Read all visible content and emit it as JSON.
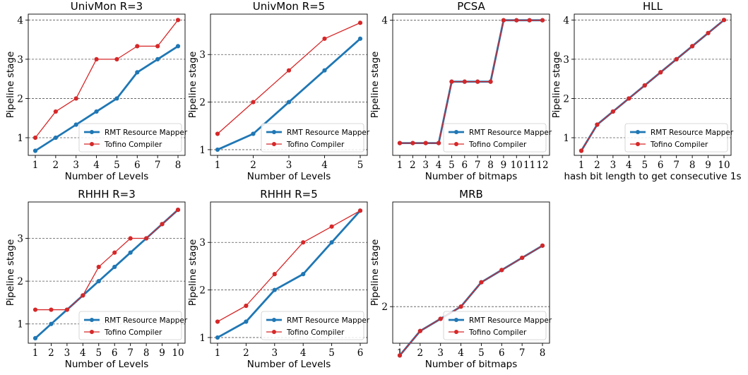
{
  "colors": {
    "rmt": "#1f77b4",
    "tofino": "#d62728",
    "grid": "#555555"
  },
  "legend": {
    "rmt": "RMT Resource Mapper",
    "tofino": "Tofino Compiler",
    "placement": "lower-right"
  },
  "chart_data": [
    {
      "type": "line",
      "title": "UnivMon R=3",
      "xlabel": "Number of Levels",
      "ylabel": "Pipeline stage",
      "x": [
        1,
        2,
        3,
        4,
        5,
        6,
        7,
        8
      ],
      "ylim": [
        0.55,
        4.15
      ],
      "yticks": [
        1,
        2,
        3,
        4
      ],
      "series": [
        {
          "name": "RMT Resource Mapper",
          "values": [
            0.667,
            1.0,
            1.333,
            1.667,
            2.0,
            2.667,
            3.0,
            3.333
          ]
        },
        {
          "name": "Tofino Compiler",
          "values": [
            1.0,
            1.667,
            2.0,
            3.0,
            3.0,
            3.333,
            3.333,
            4.0
          ]
        }
      ],
      "grid": "y"
    },
    {
      "type": "line",
      "title": "UnivMon R=5",
      "xlabel": "Number of Levels",
      "ylabel": "Pipeline stage",
      "x": [
        1,
        2,
        3,
        4,
        5
      ],
      "ylim": [
        0.88,
        3.85
      ],
      "yticks": [
        1,
        2,
        3
      ],
      "series": [
        {
          "name": "RMT Resource Mapper",
          "values": [
            1.0,
            1.333,
            2.0,
            2.667,
            3.333
          ]
        },
        {
          "name": "Tofino Compiler",
          "values": [
            1.333,
            2.0,
            2.667,
            3.333,
            3.667
          ]
        }
      ],
      "grid": "y"
    },
    {
      "type": "line",
      "title": "PCSA",
      "xlabel": "Number of bitmaps",
      "ylabel": "Pipeline stage",
      "x": [
        1,
        2,
        3,
        4,
        5,
        6,
        7,
        8,
        9,
        10,
        11,
        12
      ],
      "ylim": [
        1.8,
        4.1
      ],
      "yticks": [
        4
      ],
      "series": [
        {
          "name": "RMT Resource Mapper",
          "values": [
            2.0,
            2.0,
            2.0,
            2.0,
            3.0,
            3.0,
            3.0,
            3.0,
            4.0,
            4.0,
            4.0,
            4.0
          ]
        },
        {
          "name": "Tofino Compiler",
          "values": [
            2.0,
            2.0,
            2.0,
            2.0,
            3.0,
            3.0,
            3.0,
            3.0,
            4.0,
            4.0,
            4.0,
            4.0
          ]
        }
      ],
      "grid": "y"
    },
    {
      "type": "line",
      "title": "HLL",
      "xlabel": "hash bit length to get consecutive 1s",
      "ylabel": "Pipeline stage",
      "x": [
        1,
        2,
        3,
        4,
        5,
        6,
        7,
        8,
        9,
        10
      ],
      "ylim": [
        0.55,
        4.15
      ],
      "yticks": [
        1,
        2,
        3,
        4
      ],
      "series": [
        {
          "name": "RMT Resource Mapper",
          "values": [
            0.667,
            1.333,
            1.667,
            2.0,
            2.333,
            2.667,
            3.0,
            3.333,
            3.667,
            4.0
          ]
        },
        {
          "name": "Tofino Compiler",
          "values": [
            0.667,
            1.333,
            1.667,
            2.0,
            2.333,
            2.667,
            3.0,
            3.333,
            3.667,
            4.0
          ]
        }
      ],
      "grid": "y"
    },
    {
      "type": "line",
      "title": "RHHH R=3",
      "xlabel": "Number of Levels",
      "ylabel": "Pipeline stage",
      "x": [
        1,
        2,
        3,
        4,
        5,
        6,
        7,
        8,
        9,
        10
      ],
      "ylim": [
        0.55,
        3.85
      ],
      "yticks": [
        1,
        2,
        3
      ],
      "series": [
        {
          "name": "RMT Resource Mapper",
          "values": [
            0.667,
            1.0,
            1.333,
            1.667,
            2.0,
            2.333,
            2.667,
            3.0,
            3.333,
            3.667
          ]
        },
        {
          "name": "Tofino Compiler",
          "values": [
            1.333,
            1.333,
            1.333,
            1.667,
            2.333,
            2.667,
            3.0,
            3.0,
            3.333,
            3.667
          ]
        }
      ],
      "grid": "y"
    },
    {
      "type": "line",
      "title": "RHHH R=5",
      "xlabel": "Number of Levels",
      "ylabel": "Pipeline stage",
      "x": [
        1,
        2,
        3,
        4,
        5,
        6
      ],
      "ylim": [
        0.88,
        3.85
      ],
      "yticks": [
        1,
        2,
        3
      ],
      "series": [
        {
          "name": "RMT Resource Mapper",
          "values": [
            1.0,
            1.333,
            2.0,
            2.333,
            3.0,
            3.667
          ]
        },
        {
          "name": "Tofino Compiler",
          "values": [
            1.333,
            1.667,
            2.333,
            3.0,
            3.333,
            3.667
          ]
        }
      ],
      "grid": "y"
    },
    {
      "type": "line",
      "title": "MRB",
      "xlabel": "Number of bitmaps",
      "ylabel": "Pipeline stage",
      "x": [
        1,
        2,
        3,
        4,
        5,
        6,
        7,
        8
      ],
      "ylim": [
        1.5,
        3.43
      ],
      "yticks": [
        2
      ],
      "series": [
        {
          "name": "RMT Resource Mapper",
          "values": [
            1.333,
            1.667,
            1.833,
            2.0,
            2.333,
            2.5,
            2.667,
            2.833
          ]
        },
        {
          "name": "Tofino Compiler",
          "values": [
            1.333,
            1.667,
            1.833,
            2.0,
            2.333,
            2.5,
            2.667,
            2.833
          ]
        }
      ],
      "grid": "y"
    }
  ]
}
